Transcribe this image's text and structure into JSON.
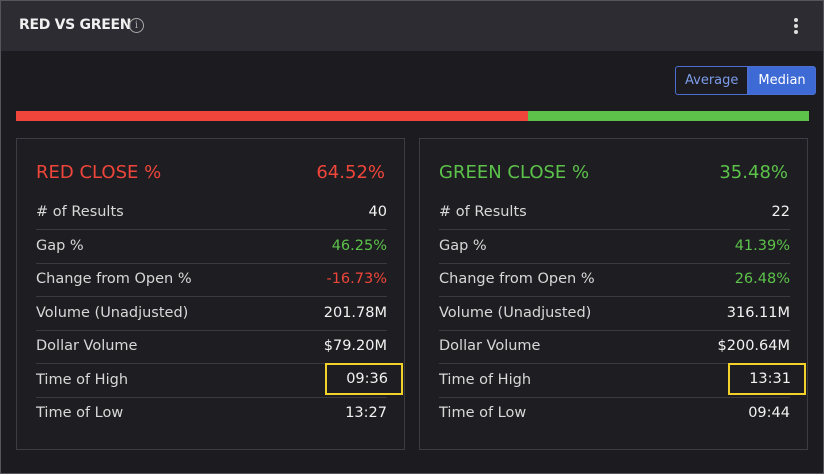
{
  "header": {
    "title": "RED VS GREEN"
  },
  "toggle": {
    "options": [
      "Average",
      "Median"
    ],
    "selected": 1
  },
  "cards": [
    {
      "title": "RED CLOSE %",
      "value": {
        "value": 64.52,
        "label": "64.52%"
      },
      "color": "#f0453a",
      "rows": [
        {
          "label": "# of Results",
          "value": "40"
        },
        {
          "label": "Gap %",
          "value": "46.25%",
          "color": "#5cc24a"
        },
        {
          "label": "Change from Open %",
          "value": "-16.73%",
          "color": "#f0453a"
        },
        {
          "label": "Volume (Unadjusted)",
          "value": "201.78M"
        },
        {
          "label": "Dollar Volume",
          "value": "$79.20M"
        },
        {
          "label": "Time of High",
          "value": "09:36",
          "highlighted": true
        },
        {
          "label": "Time of Low",
          "value": "13:27"
        }
      ]
    },
    {
      "title": "GREEN CLOSE %",
      "value": {
        "value": 35.48,
        "label": "35.48%"
      },
      "color": "#5cc24a",
      "rows": [
        {
          "label": "# of Results",
          "value": "22"
        },
        {
          "label": "Gap %",
          "value": "41.39%",
          "color": "#5cc24a"
        },
        {
          "label": "Change from Open %",
          "value": "26.48%",
          "color": "#5cc24a"
        },
        {
          "label": "Volume (Unadjusted)",
          "value": "316.11M"
        },
        {
          "label": "Dollar Volume",
          "value": "$200.64M"
        },
        {
          "label": "Time of High",
          "value": "13:31",
          "highlighted": true
        },
        {
          "label": "Time of Low",
          "value": "09:44"
        }
      ]
    }
  ]
}
